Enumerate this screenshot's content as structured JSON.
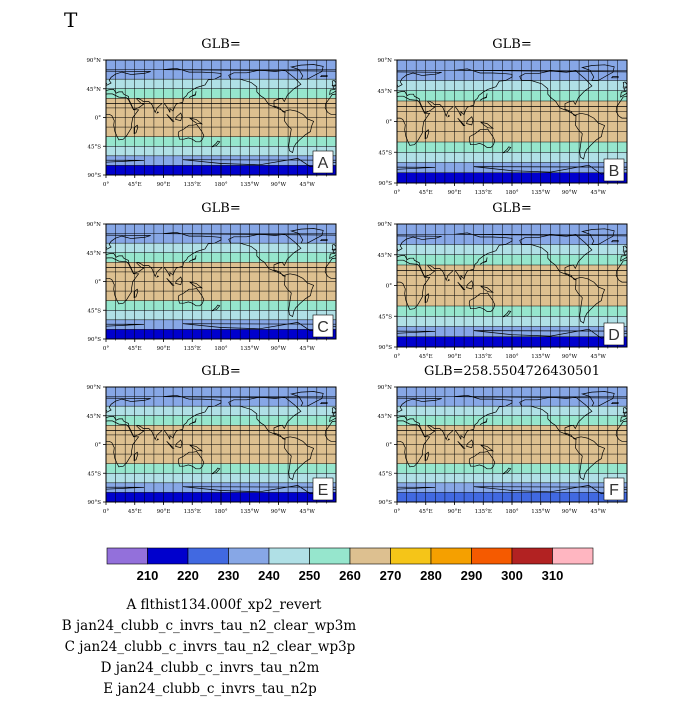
{
  "figure": {
    "title": "T"
  },
  "colors": {
    "lev_bins": [
      "#9370db",
      "#0000cd",
      "#4169e1",
      "#87a7e6",
      "#b0e0e6",
      "#96e6cd",
      "#ddc090",
      "#f5c518",
      "#f5a000",
      "#f55a00",
      "#b22222",
      "#ffb6c1"
    ],
    "coast": "#000000",
    "grid": "#000000"
  },
  "chart_data": [
    {
      "type": "heatmap",
      "panel_label": "A",
      "title": "GLB=",
      "x_ticks": [
        "0°",
        "45°E",
        "90°E",
        "135°E",
        "180°",
        "135°W",
        "90°W",
        "45°W"
      ],
      "y_ticks": [
        "90°N",
        "45°N",
        "0°",
        "45°S",
        "90°S"
      ],
      "xlim": [
        0,
        360
      ],
      "ylim": [
        -90,
        90
      ],
      "zonal_bands": [
        {
          "lat": [
            60,
            90
          ],
          "value": 235
        },
        {
          "lat": [
            45,
            60
          ],
          "value": 245
        },
        {
          "lat": [
            30,
            45
          ],
          "value": 255
        },
        {
          "lat": [
            -30,
            30
          ],
          "value": 265
        },
        {
          "lat": [
            -45,
            -30
          ],
          "value": 255
        },
        {
          "lat": [
            -60,
            -45
          ],
          "value": 245
        },
        {
          "lat": [
            -75,
            -60
          ],
          "value": 232
        },
        {
          "lat": [
            -90,
            -75
          ],
          "value": 215
        }
      ]
    },
    {
      "type": "heatmap",
      "panel_label": "B",
      "title": "GLB=",
      "x_ticks": [
        "0°",
        "45°E",
        "90°E",
        "135°E",
        "180°",
        "135°W",
        "90°W",
        "45°W"
      ],
      "y_ticks": [
        "90°N",
        "45°N",
        "0°",
        "45°S",
        "90°S"
      ],
      "xlim": [
        0,
        360
      ],
      "ylim": [
        -90,
        90
      ],
      "zonal_bands": [
        {
          "lat": [
            60,
            90
          ],
          "value": 235
        },
        {
          "lat": [
            45,
            60
          ],
          "value": 245
        },
        {
          "lat": [
            30,
            45
          ],
          "value": 255
        },
        {
          "lat": [
            -30,
            30
          ],
          "value": 265
        },
        {
          "lat": [
            -45,
            -30
          ],
          "value": 255
        },
        {
          "lat": [
            -60,
            -45
          ],
          "value": 245
        },
        {
          "lat": [
            -75,
            -60
          ],
          "value": 232
        },
        {
          "lat": [
            -90,
            -75
          ],
          "value": 215
        }
      ]
    },
    {
      "type": "heatmap",
      "panel_label": "C",
      "title": "GLB=",
      "x_ticks": [
        "0°",
        "45°E",
        "90°E",
        "135°E",
        "180°",
        "135°W",
        "90°W",
        "45°W"
      ],
      "y_ticks": [
        "90°N",
        "45°N",
        "0°",
        "45°S",
        "90°S"
      ],
      "xlim": [
        0,
        360
      ],
      "ylim": [
        -90,
        90
      ],
      "zonal_bands": [
        {
          "lat": [
            60,
            90
          ],
          "value": 235
        },
        {
          "lat": [
            45,
            60
          ],
          "value": 245
        },
        {
          "lat": [
            30,
            45
          ],
          "value": 255
        },
        {
          "lat": [
            -30,
            30
          ],
          "value": 265
        },
        {
          "lat": [
            -45,
            -30
          ],
          "value": 255
        },
        {
          "lat": [
            -60,
            -45
          ],
          "value": 245
        },
        {
          "lat": [
            -75,
            -60
          ],
          "value": 232
        },
        {
          "lat": [
            -90,
            -75
          ],
          "value": 215
        }
      ]
    },
    {
      "type": "heatmap",
      "panel_label": "D",
      "title": "GLB=",
      "x_ticks": [
        "0°",
        "45°E",
        "90°E",
        "135°E",
        "180°",
        "135°W",
        "90°W",
        "45°W"
      ],
      "y_ticks": [
        "90°N",
        "45°N",
        "0°",
        "45°S",
        "90°S"
      ],
      "xlim": [
        0,
        360
      ],
      "ylim": [
        -90,
        90
      ],
      "zonal_bands": [
        {
          "lat": [
            60,
            90
          ],
          "value": 235
        },
        {
          "lat": [
            45,
            60
          ],
          "value": 245
        },
        {
          "lat": [
            30,
            45
          ],
          "value": 255
        },
        {
          "lat": [
            -30,
            30
          ],
          "value": 265
        },
        {
          "lat": [
            -45,
            -30
          ],
          "value": 255
        },
        {
          "lat": [
            -60,
            -45
          ],
          "value": 245
        },
        {
          "lat": [
            -75,
            -60
          ],
          "value": 232
        },
        {
          "lat": [
            -90,
            -75
          ],
          "value": 215
        }
      ]
    },
    {
      "type": "heatmap",
      "panel_label": "E",
      "title": "GLB=",
      "x_ticks": [
        "0°",
        "45°E",
        "90°E",
        "135°E",
        "180°",
        "135°W",
        "90°W",
        "45°W"
      ],
      "y_ticks": [
        "90°N",
        "45°N",
        "0°",
        "45°S",
        "90°S"
      ],
      "xlim": [
        0,
        360
      ],
      "ylim": [
        -90,
        90
      ],
      "zonal_bands": [
        {
          "lat": [
            60,
            90
          ],
          "value": 235
        },
        {
          "lat": [
            45,
            60
          ],
          "value": 245
        },
        {
          "lat": [
            30,
            45
          ],
          "value": 255
        },
        {
          "lat": [
            -30,
            30
          ],
          "value": 265
        },
        {
          "lat": [
            -45,
            -30
          ],
          "value": 255
        },
        {
          "lat": [
            -60,
            -45
          ],
          "value": 245
        },
        {
          "lat": [
            -75,
            -60
          ],
          "value": 232
        },
        {
          "lat": [
            -90,
            -75
          ],
          "value": 215
        }
      ]
    },
    {
      "type": "heatmap",
      "panel_label": "F",
      "title": "GLB=258.5504726430501",
      "x_ticks": [
        "0°",
        "45°E",
        "90°E",
        "135°E",
        "180°",
        "135°W",
        "90°W",
        "45°W"
      ],
      "y_ticks": [
        "90°N",
        "45°N",
        "0°",
        "45°S",
        "90°S"
      ],
      "xlim": [
        0,
        360
      ],
      "ylim": [
        -90,
        90
      ],
      "zonal_bands": [
        {
          "lat": [
            60,
            90
          ],
          "value": 235
        },
        {
          "lat": [
            45,
            60
          ],
          "value": 245
        },
        {
          "lat": [
            30,
            45
          ],
          "value": 255
        },
        {
          "lat": [
            -30,
            30
          ],
          "value": 265
        },
        {
          "lat": [
            -45,
            -30
          ],
          "value": 255
        },
        {
          "lat": [
            -60,
            -45
          ],
          "value": 245
        },
        {
          "lat": [
            -75,
            -60
          ],
          "value": 235
        },
        {
          "lat": [
            -90,
            -75
          ],
          "value": 225
        }
      ]
    }
  ],
  "colorbar": {
    "levels": [
      210,
      220,
      230,
      240,
      250,
      260,
      270,
      280,
      290,
      300,
      310
    ],
    "labels": [
      "210",
      "220",
      "230",
      "240",
      "250",
      "260",
      "270",
      "280",
      "290",
      "300",
      "310"
    ]
  },
  "legend_lines": [
    "A  flthist134.000f_xp2_revert",
    "B  jan24_clubb_c_invrs_tau_n2_clear_wp3m",
    "C  jan24_clubb_c_invrs_tau_n2_clear_wp3p",
    "D  jan24_clubb_c_invrs_tau_n2m",
    "E  jan24_clubb_c_invrs_tau_n2p"
  ]
}
